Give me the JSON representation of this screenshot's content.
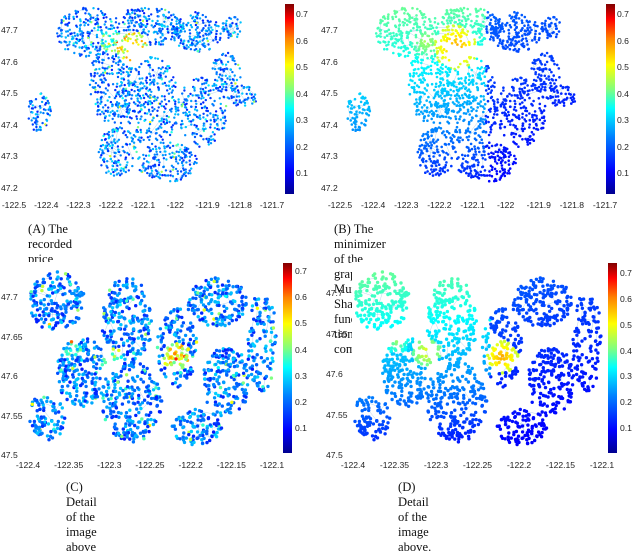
{
  "panels": [
    {
      "id": "a",
      "caption": "(A) The recorded price per square foot.",
      "yticks": [
        "47.7",
        "47.6",
        "47.5",
        "47.4",
        "47.3",
        "47.2"
      ],
      "xticks": [
        "-122.5",
        "-122.4",
        "-122.3",
        "-122.2",
        "-122.1",
        "-122",
        "-121.9",
        "-121.8",
        "-121.7"
      ],
      "cbar_ticks": [
        "0.7",
        "0.6",
        "0.5",
        "0.4",
        "0.3",
        "0.2",
        "0.1"
      ]
    },
    {
      "id": "b",
      "caption": "(B) The minimizer of the graph Mumford–Shah functional computed.",
      "caption_line1": "(B) The minimizer of the graph Mumford–Shah func-",
      "caption_line2": "tional computed.",
      "yticks": [
        "47.7",
        "47.6",
        "47.5",
        "47.4",
        "47.3",
        "47.2"
      ],
      "xticks": [
        "-122.5",
        "-122.4",
        "-122.3",
        "-122.2",
        "-122.1",
        "-122",
        "-121.9",
        "-121.8",
        "-121.7"
      ],
      "cbar_ticks": [
        "0.7",
        "0.6",
        "0.5",
        "0.4",
        "0.3",
        "0.2",
        "0.1"
      ]
    },
    {
      "id": "c",
      "caption": "(C) Detail of the image above",
      "yticks": [
        "47.7",
        "47.65",
        "47.6",
        "47.55",
        "47.5"
      ],
      "xticks": [
        "-122.4",
        "-122.35",
        "-122.3",
        "-122.25",
        "-122.2",
        "-122.15",
        "-122.1"
      ],
      "cbar_ticks": [
        "0.7",
        "0.6",
        "0.5",
        "0.4",
        "0.3",
        "0.2",
        "0.1"
      ]
    },
    {
      "id": "d",
      "caption": "(D) Detail of the image above.",
      "yticks": [
        "47.7",
        "47.65",
        "47.6",
        "47.55",
        "47.5"
      ],
      "xticks": [
        "-122.4",
        "-122.35",
        "-122.3",
        "-122.25",
        "-122.2",
        "-122.15",
        "-122.1"
      ],
      "cbar_ticks": [
        "0.7",
        "0.6",
        "0.5",
        "0.4",
        "0.3",
        "0.2",
        "0.1"
      ]
    }
  ],
  "colormap": "jet",
  "colors": {
    "low": "#00008f",
    "mid": "#00ffff",
    "high": "#800000"
  }
}
